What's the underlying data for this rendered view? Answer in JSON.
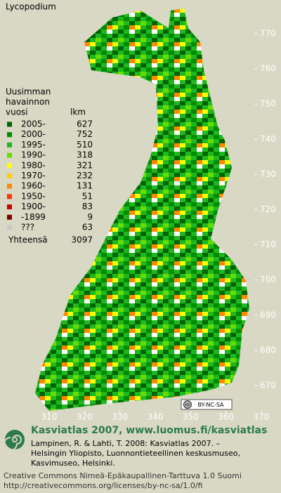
{
  "title": "Lycopodium",
  "legend": {
    "heading": [
      "Uusimman",
      "havainnon",
      "vuosi"
    ],
    "count_heading": "lkm",
    "entries": [
      {
        "label": "2005-",
        "count": 627,
        "color": "#006400"
      },
      {
        "label": "2000-",
        "count": 752,
        "color": "#008c00"
      },
      {
        "label": "1995-",
        "count": 510,
        "color": "#20b820"
      },
      {
        "label": "1990-",
        "count": 318,
        "color": "#66dd00"
      },
      {
        "label": "1980-",
        "count": 321,
        "color": "#ffff00"
      },
      {
        "label": "1970-",
        "count": 232,
        "color": "#ffcc00"
      },
      {
        "label": "1960-",
        "count": 131,
        "color": "#ff8800"
      },
      {
        "label": "1950-",
        "count": 51,
        "color": "#ff3300"
      },
      {
        "label": "1900-",
        "count": 83,
        "color": "#cc0000"
      },
      {
        "label": "-1899",
        "count": 9,
        "color": "#800000"
      },
      {
        "label": "???",
        "count": 63,
        "color": "#c8c8c8"
      }
    ],
    "total_label": "Yhteensä",
    "total": 3097
  },
  "map": {
    "xlim": [
      310,
      370
    ],
    "ylim": [
      670,
      770
    ],
    "xticks": [
      310,
      320,
      330,
      340,
      350,
      360,
      370
    ],
    "yticks": [
      670,
      680,
      690,
      700,
      710,
      720,
      730,
      740,
      750,
      760,
      770
    ]
  },
  "badge": {
    "cc": "cc",
    "license": "BY-NC-SA"
  },
  "footer": {
    "site": "Kasviatlas 2007, www.luomus.fi/kasviatlas",
    "citation": [
      "Lampinen, R. & Lahti, T. 2008: Kasviatlas 2007. –",
      "Helsingin Yliopisto, Luonnontieteellinen keskusmuseo,",
      "Kasvimuseo, Helsinki."
    ],
    "license": [
      "Creative Commons Nimeä-Epäkaupallinen-Tarttuva 1.0 Suomi",
      "http://creativecommons.org/licenses/by-nc-sa/1.0/fi"
    ]
  }
}
